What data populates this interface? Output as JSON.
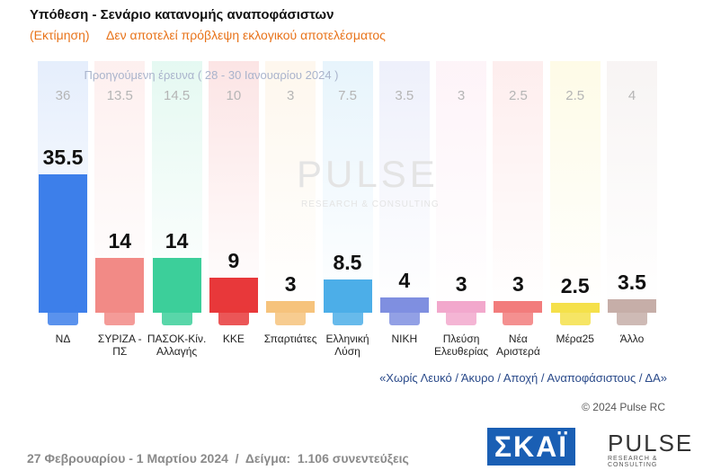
{
  "chart_data": {
    "type": "bar",
    "title": "Υπόθεση - Σενάριο κατανομής αναποφάσιστων",
    "subtitle_note": "(Εκτίμηση)",
    "subtitle": "Δεν αποτελεί πρόβλεψη εκλογικού αποτελέσματος",
    "previous_label": "Προηγούμενη έρευνα ( 28 - 30 Ιανουαρίου 2024 )",
    "categories": [
      "ΝΔ",
      "ΣΥΡΙΖΑ - ΠΣ",
      "ΠΑΣΟΚ-Κίν. Αλλαγής",
      "ΚΚΕ",
      "Σπαρτιάτες",
      "Ελληνική Λύση",
      "ΝΙΚΗ",
      "Πλεύση Ελευθερίας",
      "Νέα Αριστερά",
      "Μέρα25",
      "Άλλο"
    ],
    "values": [
      35.5,
      14,
      14,
      9,
      3,
      8.5,
      4,
      3,
      3,
      2.5,
      3.5
    ],
    "previous_values": [
      36,
      13.5,
      14.5,
      10,
      3,
      7.5,
      3.5,
      3,
      2.5,
      2.5,
      4
    ],
    "colors": [
      "#3d7fea",
      "#f28a86",
      "#3ccf9a",
      "#e8383a",
      "#f6c37c",
      "#4caee8",
      "#7f8fe0",
      "#f2a8cc",
      "#f27c7c",
      "#f5e04a",
      "#c6aea8"
    ],
    "watermark": "PULSE",
    "watermark_sub": "RESEARCH & CONSULTING",
    "footnote": "«Χωρίς Λευκό / Άκυρο / Αποχή / Αναποφάσιστους / ΔΑ»",
    "copyright": "© 2024 Pulse RC",
    "footer": "27 Φεβρουαρίου - 1 Μαρτίου 2024  /  Δείγμα:  1.106 συνεντεύξεις",
    "logo_channel": "ΣΚΑΪ",
    "logo_pollster": "PULSE",
    "logo_pollster_sub": "RESEARCH & CONSULTING"
  }
}
